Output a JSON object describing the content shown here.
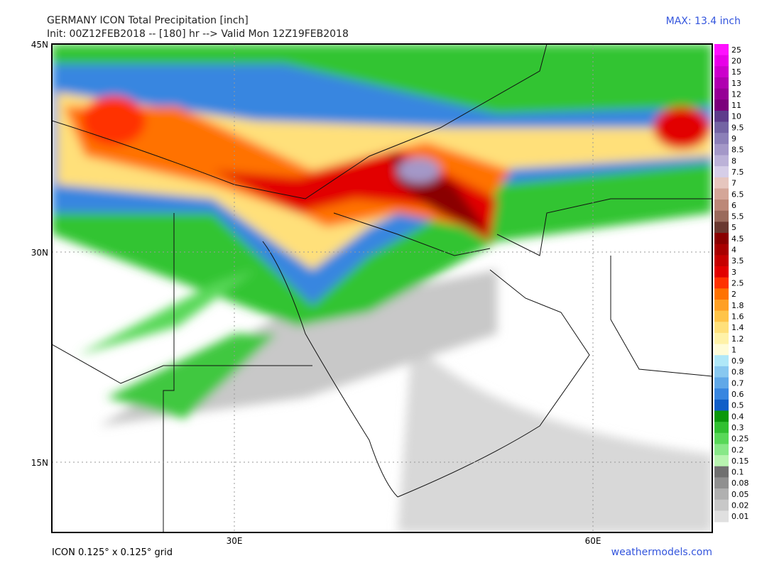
{
  "header": {
    "title": "GERMANY ICON Total Precipitation [inch]",
    "subtitle": "Init: 00Z12FEB2018 -- [180] hr --> Valid Mon 12Z19FEB2018",
    "max": "MAX: 13.4 inch"
  },
  "map": {
    "lat_labels": [
      "45N",
      "30N",
      "15N"
    ],
    "lon_labels": [
      "30E",
      "60E"
    ]
  },
  "legend": [
    {
      "label": "25",
      "color": "#ff10ff"
    },
    {
      "label": "20",
      "color": "#e800e8"
    },
    {
      "label": "15",
      "color": "#cc00cc"
    },
    {
      "label": "13",
      "color": "#b000b0"
    },
    {
      "label": "12",
      "color": "#960096"
    },
    {
      "label": "11",
      "color": "#7c007c"
    },
    {
      "label": "10",
      "color": "#5e3c8c"
    },
    {
      "label": "9.5",
      "color": "#7464a4"
    },
    {
      "label": "9",
      "color": "#8c80b8"
    },
    {
      "label": "8.5",
      "color": "#a498c8"
    },
    {
      "label": "8",
      "color": "#bcb2d8"
    },
    {
      "label": "7.5",
      "color": "#d6cee8"
    },
    {
      "label": "7",
      "color": "#e6c6be"
    },
    {
      "label": "6.5",
      "color": "#d4a698"
    },
    {
      "label": "6",
      "color": "#bc8878"
    },
    {
      "label": "5.5",
      "color": "#9a6a5c"
    },
    {
      "label": "5",
      "color": "#6a3830"
    },
    {
      "label": "4.5",
      "color": "#8a0000"
    },
    {
      "label": "4",
      "color": "#a80000"
    },
    {
      "label": "3.5",
      "color": "#c60000"
    },
    {
      "label": "3",
      "color": "#e20000"
    },
    {
      "label": "2.5",
      "color": "#ff3200"
    },
    {
      "label": "2",
      "color": "#ff7200"
    },
    {
      "label": "1.8",
      "color": "#ffa024"
    },
    {
      "label": "1.6",
      "color": "#ffc448"
    },
    {
      "label": "1.4",
      "color": "#ffe07a"
    },
    {
      "label": "1.2",
      "color": "#fff2a8"
    },
    {
      "label": "1",
      "color": "#fffcd8"
    },
    {
      "label": "0.9",
      "color": "#b0e8f8"
    },
    {
      "label": "0.8",
      "color": "#88c8f0"
    },
    {
      "label": "0.7",
      "color": "#60a8e8"
    },
    {
      "label": "0.6",
      "color": "#3886e0"
    },
    {
      "label": "0.5",
      "color": "#105ec8"
    },
    {
      "label": "0.4",
      "color": "#0a980a"
    },
    {
      "label": "0.3",
      "color": "#30c030"
    },
    {
      "label": "0.25",
      "color": "#58d858"
    },
    {
      "label": "0.2",
      "color": "#88e888"
    },
    {
      "label": "0.15",
      "color": "#b8f4b0"
    },
    {
      "label": "0.1",
      "color": "#707070"
    },
    {
      "label": "0.08",
      "color": "#909090"
    },
    {
      "label": "0.05",
      "color": "#b0b0b0"
    },
    {
      "label": "0.02",
      "color": "#c8c8c8"
    },
    {
      "label": "0.01",
      "color": "#e0e0e0"
    }
  ],
  "footer": {
    "grid": "ICON 0.125° x 0.125° grid",
    "source": "weathermodels.com"
  }
}
